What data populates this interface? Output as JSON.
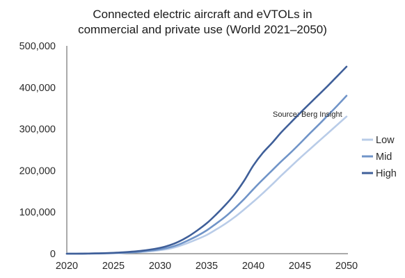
{
  "chart_data": {
    "type": "line",
    "title_lines": [
      "Connected electric aircraft and eVTOLs in",
      "commercial and private use (World 2021–2050)"
    ],
    "source": "Source: Berg Insight",
    "xlabel": "",
    "ylabel": "",
    "xlim": [
      2020,
      2050
    ],
    "ylim": [
      0,
      500000
    ],
    "x_ticks": [
      "2020",
      "2025",
      "2030",
      "2035",
      "2040",
      "2045",
      "2050"
    ],
    "y_ticks": [
      "0",
      "100,000",
      "200,000",
      "300,000",
      "400,000",
      "500,000"
    ],
    "grid": false,
    "legend_position": "right",
    "x": [
      2020,
      2021,
      2022,
      2023,
      2024,
      2025,
      2026,
      2027,
      2028,
      2029,
      2030,
      2031,
      2032,
      2033,
      2034,
      2035,
      2036,
      2037,
      2038,
      2039,
      2040,
      2041,
      2042,
      2043,
      2044,
      2045,
      2046,
      2047,
      2048,
      2049,
      2050
    ],
    "series": [
      {
        "name": "Low",
        "color": "#b9cce8",
        "values": [
          0,
          0,
          200,
          400,
          700,
          1200,
          1800,
          2700,
          4000,
          6000,
          8500,
          12000,
          18000,
          26000,
          35000,
          45000,
          58000,
          72000,
          88000,
          106000,
          125000,
          145000,
          166000,
          188000,
          209000,
          230000,
          250000,
          270000,
          290000,
          310000,
          330000
        ]
      },
      {
        "name": "Mid",
        "color": "#7094c8",
        "values": [
          0,
          0,
          200,
          500,
          900,
          1500,
          2300,
          3500,
          5200,
          7500,
          10500,
          15000,
          22000,
          32000,
          43000,
          56000,
          72000,
          89000,
          109000,
          131000,
          155000,
          178000,
          200000,
          222000,
          243000,
          265000,
          288000,
          310000,
          333000,
          356000,
          380000
        ]
      },
      {
        "name": "High",
        "color": "#3f5f99",
        "values": [
          0,
          0,
          300,
          600,
          1200,
          2000,
          3200,
          4800,
          7000,
          10000,
          14000,
          20000,
          29000,
          41000,
          56000,
          73000,
          94000,
          117000,
          143000,
          175000,
          212000,
          242000,
          266000,
          292000,
          315000,
          338000,
          360000,
          382000,
          404000,
          427000,
          450000
        ]
      }
    ]
  }
}
